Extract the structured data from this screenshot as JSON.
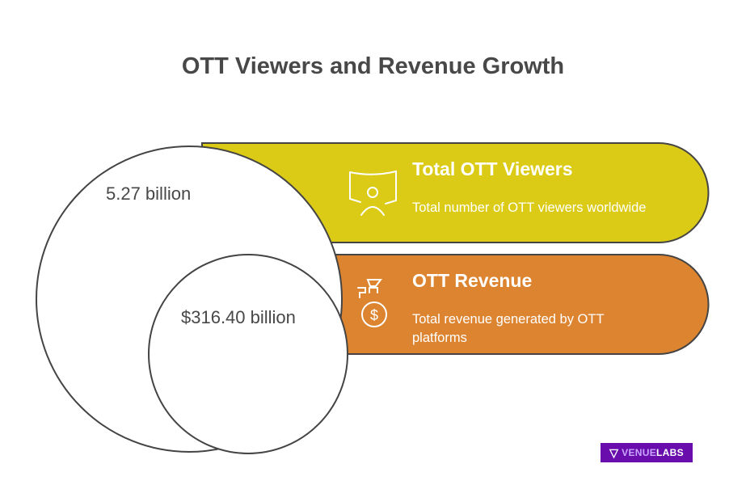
{
  "title": "OTT Viewers and Revenue Growth",
  "colors": {
    "viewers": "#dccb16",
    "revenue": "#dd8430",
    "outline": "#444444",
    "logo_bg": "#6a0dad"
  },
  "circles": {
    "outer_value": "5.27 billion",
    "inner_value": "$316.40 billion"
  },
  "items": [
    {
      "icon": "viewer-screen-icon",
      "heading": "Total OTT Viewers",
      "description": "Total number of OTT viewers worldwide"
    },
    {
      "icon": "money-bag-icon",
      "heading": "OTT Revenue",
      "description": "Total revenue generated by OTT platforms"
    }
  ],
  "logo": {
    "part1": "VENUE",
    "part2": "LABS"
  }
}
